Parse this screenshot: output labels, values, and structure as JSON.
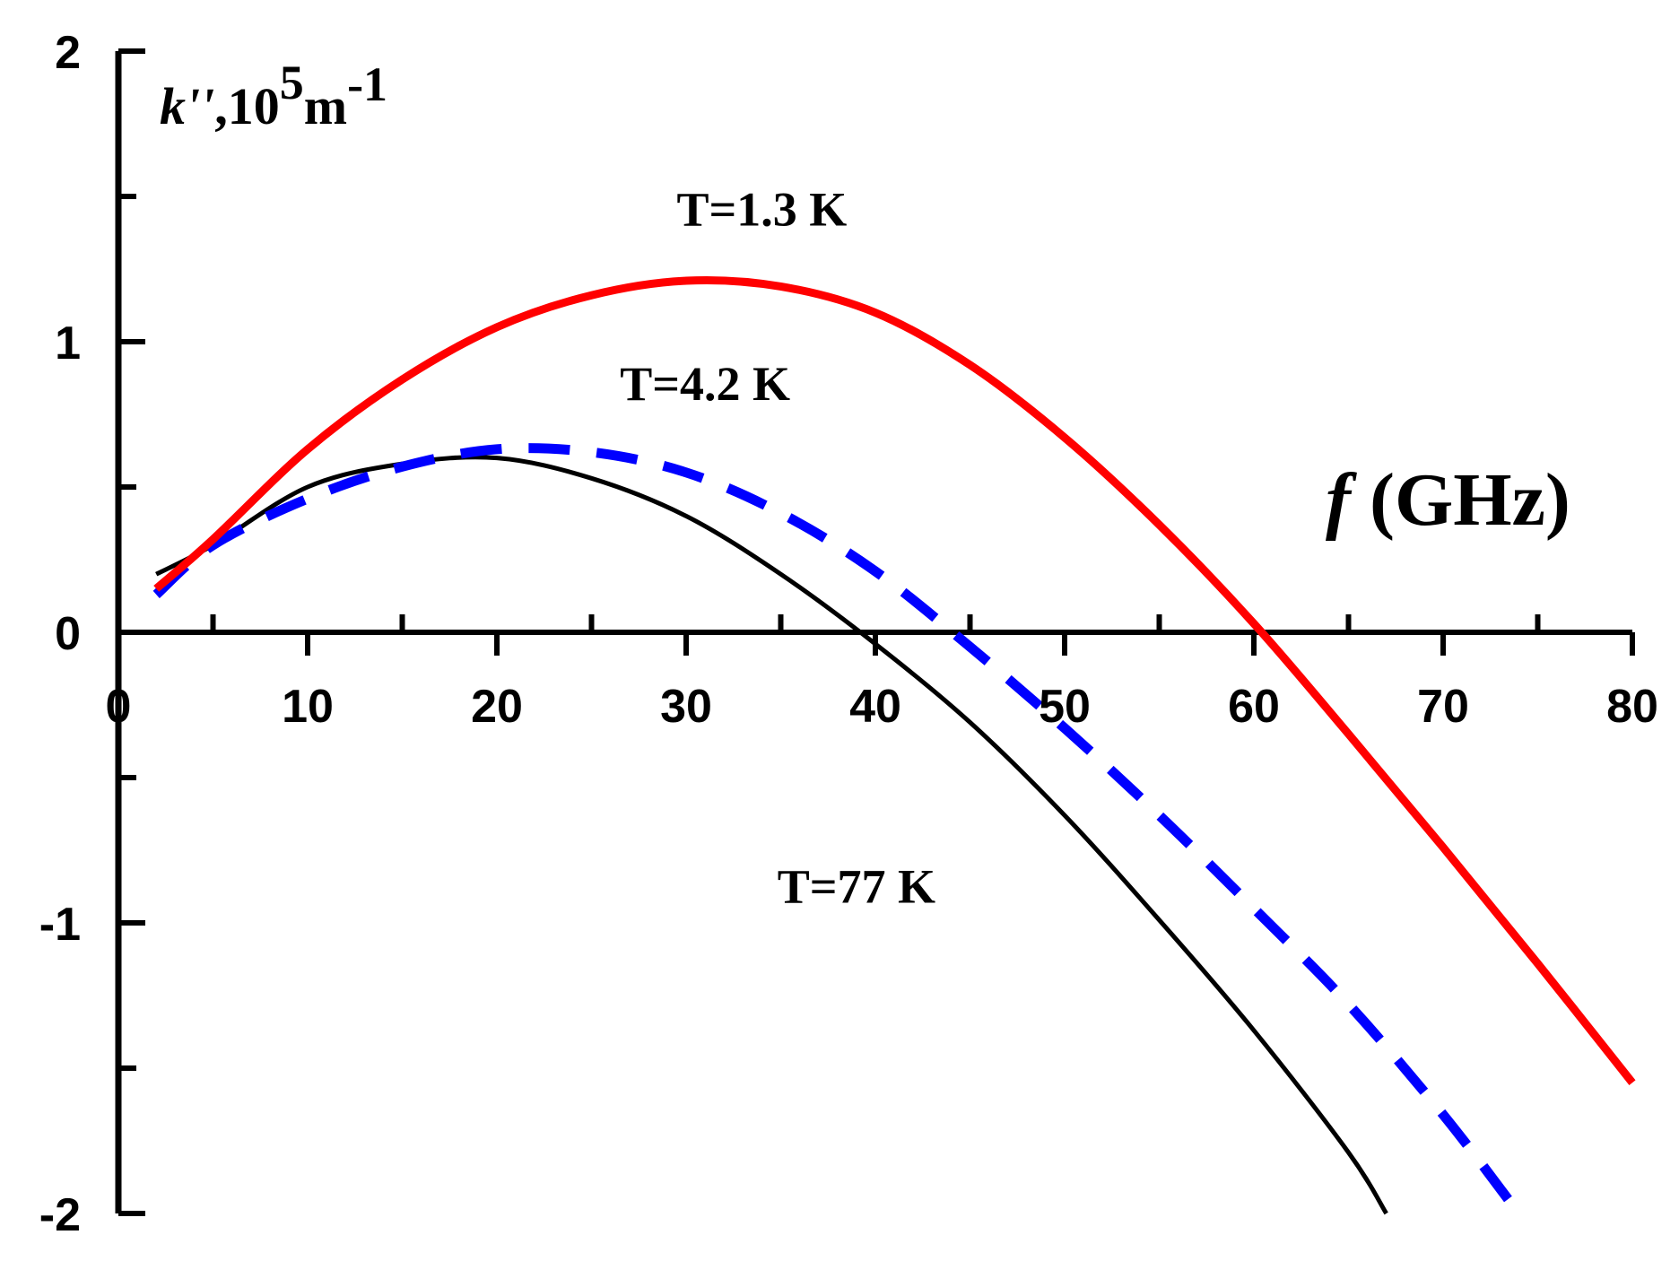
{
  "chart_data": {
    "type": "line",
    "title": "",
    "xlabel": {
      "symbol": "f",
      "text": " (GHz)"
    },
    "ylabel": {
      "symbol": "k''",
      "prefix": ",10",
      "exponent": "5",
      "unit": "m",
      "unit_exponent": "-1"
    },
    "xlim": [
      0,
      80
    ],
    "ylim": [
      -2,
      2
    ],
    "x_ticks": [
      "0",
      "10",
      "20",
      "30",
      "40",
      "50",
      "60",
      "70",
      "80"
    ],
    "y_ticks": [
      "2",
      "1",
      "0",
      "-1",
      "-2"
    ],
    "grid": false,
    "series": [
      {
        "name": "T=1.3 K",
        "color": "#ff0000",
        "style": "solid",
        "x": [
          2,
          5,
          10,
          15,
          20,
          25,
          30,
          35,
          40,
          45,
          50,
          55,
          60,
          65,
          70,
          75,
          80
        ],
        "y": [
          0.15,
          0.32,
          0.63,
          0.87,
          1.05,
          1.16,
          1.21,
          1.19,
          1.1,
          0.92,
          0.67,
          0.37,
          0.03,
          -0.35,
          -0.74,
          -1.14,
          -1.55
        ]
      },
      {
        "name": "T=4.2 K",
        "color": "#0000ff",
        "style": "dashed",
        "x": [
          2,
          5,
          10,
          15,
          20,
          25,
          30,
          35,
          40,
          45,
          50,
          55,
          60,
          65,
          70,
          74
        ],
        "y": [
          0.13,
          0.3,
          0.46,
          0.57,
          0.63,
          0.62,
          0.55,
          0.41,
          0.21,
          -0.05,
          -0.33,
          -0.63,
          -0.95,
          -1.28,
          -1.66,
          -2.0
        ]
      },
      {
        "name": "T=77 K",
        "color": "#000000",
        "style": "solid",
        "x": [
          2,
          5,
          10,
          15,
          20,
          25,
          30,
          35,
          40,
          45,
          50,
          55,
          60,
          65,
          67
        ],
        "y": [
          0.2,
          0.3,
          0.5,
          0.58,
          0.6,
          0.53,
          0.4,
          0.2,
          -0.04,
          -0.31,
          -0.63,
          -0.99,
          -1.37,
          -1.79,
          -2.0
        ]
      }
    ],
    "annotations": [
      {
        "text": "T=1.3 K",
        "x": 34,
        "y": 1.4
      },
      {
        "text": "T=4.2 K",
        "x": 31,
        "y": 0.8
      },
      {
        "text": "T=77 K",
        "x": 39,
        "y": -0.93
      }
    ]
  }
}
